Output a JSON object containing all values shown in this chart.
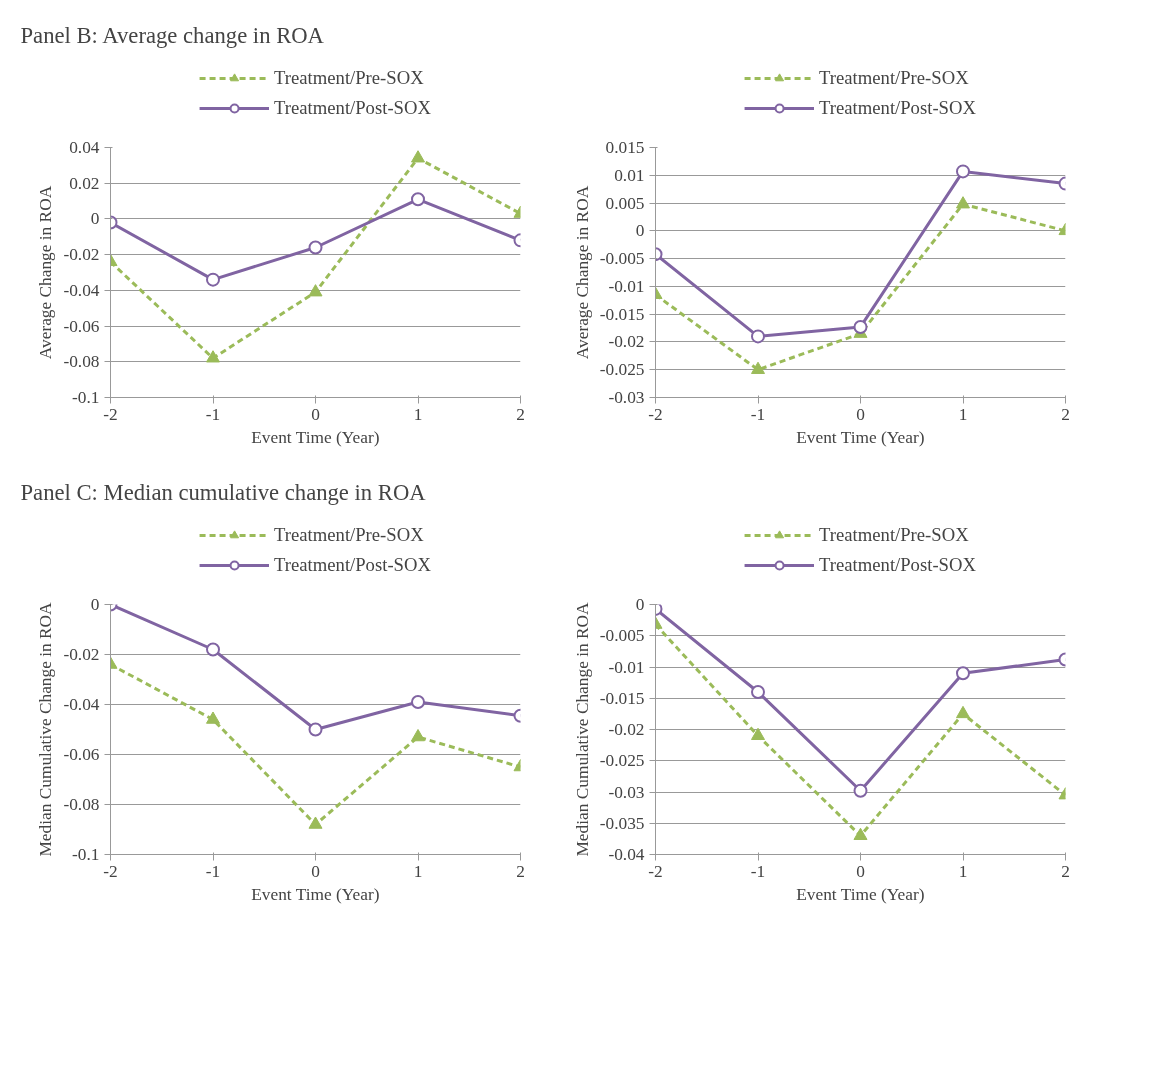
{
  "chart_data": [
    {
      "type": "line",
      "title": "Panel B: Average change in ROA",
      "xlabel": "Event Time (Year)",
      "ylabel": "Average Change in ROA",
      "x": [
        -2,
        -1,
        0,
        1,
        2
      ],
      "xlim": [
        -2,
        2
      ],
      "xticks": [
        -2,
        -1,
        0,
        1,
        2
      ],
      "ylim": [
        -0.1,
        0.04
      ],
      "yticks": [
        -0.1,
        -0.08,
        -0.06,
        -0.04,
        -0.02,
        0,
        0.02,
        0.04
      ],
      "grid": "y",
      "legend": "top",
      "series": [
        {
          "name": "Treatment/Pre-SOX",
          "color": "#9bbb59",
          "marker": "triangle",
          "line_style": "dashed",
          "values": [
            -0.024,
            -0.078,
            -0.041,
            0.034,
            0.003
          ]
        },
        {
          "name": "Treatment/Post-SOX",
          "color": "#8064a2",
          "marker": "circle",
          "line_style": "solid",
          "values": [
            -0.002,
            -0.034,
            -0.016,
            0.011,
            -0.012
          ]
        }
      ]
    },
    {
      "type": "line",
      "xlabel": "Event Time (Year)",
      "ylabel": "Average Change in ROA",
      "x": [
        -2,
        -1,
        0,
        1,
        2
      ],
      "xlim": [
        -2,
        2
      ],
      "xticks": [
        -2,
        -1,
        0,
        1,
        2
      ],
      "ylim": [
        -0.03,
        0.015
      ],
      "yticks": [
        -0.03,
        -0.025,
        -0.02,
        -0.015,
        -0.01,
        -0.005,
        0,
        0.005,
        0.01,
        0.015
      ],
      "grid": "y",
      "legend": "top",
      "series": [
        {
          "name": "Treatment/Pre-SOX",
          "color": "#9bbb59",
          "marker": "triangle",
          "line_style": "dashed",
          "values": [
            -0.0115,
            -0.025,
            -0.0185,
            0.0048,
            0.0
          ]
        },
        {
          "name": "Treatment/Post-SOX",
          "color": "#8064a2",
          "marker": "circle",
          "line_style": "solid",
          "values": [
            -0.0042,
            -0.019,
            -0.0173,
            0.0107,
            0.0085
          ]
        }
      ]
    },
    {
      "type": "line",
      "title": "Panel C: Median cumulative change in ROA",
      "xlabel": "Event Time (Year)",
      "ylabel": "Median Cumulative Change in ROA",
      "x": [
        -2,
        -1,
        0,
        1,
        2
      ],
      "xlim": [
        -2,
        2
      ],
      "xticks": [
        -2,
        -1,
        0,
        1,
        2
      ],
      "ylim": [
        -0.1,
        0
      ],
      "yticks": [
        -0.1,
        -0.08,
        -0.06,
        -0.04,
        -0.02,
        0
      ],
      "grid": "y",
      "legend": "top",
      "series": [
        {
          "name": "Treatment/Pre-SOX",
          "color": "#9bbb59",
          "marker": "triangle",
          "line_style": "dashed",
          "values": [
            -0.024,
            -0.046,
            -0.088,
            -0.053,
            -0.065
          ]
        },
        {
          "name": "Treatment/Post-SOX",
          "color": "#8064a2",
          "marker": "circle",
          "line_style": "solid",
          "values": [
            0,
            -0.018,
            -0.05,
            -0.039,
            -0.0445
          ]
        }
      ]
    },
    {
      "type": "line",
      "xlabel": "Event Time (Year)",
      "ylabel": "Median Cumulative Change in ROA",
      "x": [
        -2,
        -1,
        0,
        1,
        2
      ],
      "xlim": [
        -2,
        2
      ],
      "xticks": [
        -2,
        -1,
        0,
        1,
        2
      ],
      "ylim": [
        -0.04,
        0
      ],
      "yticks": [
        -0.04,
        -0.035,
        -0.03,
        -0.025,
        -0.02,
        -0.015,
        -0.01,
        -0.005,
        0
      ],
      "grid": "y",
      "legend": "top",
      "series": [
        {
          "name": "Treatment/Pre-SOX",
          "color": "#9bbb59",
          "marker": "triangle",
          "line_style": "dashed",
          "values": [
            -0.0032,
            -0.021,
            -0.037,
            -0.0175,
            -0.0305
          ]
        },
        {
          "name": "Treatment/Post-SOX",
          "color": "#8064a2",
          "marker": "circle",
          "line_style": "solid",
          "values": [
            -0.0007,
            -0.014,
            -0.0298,
            -0.011,
            -0.0088
          ]
        }
      ]
    }
  ]
}
